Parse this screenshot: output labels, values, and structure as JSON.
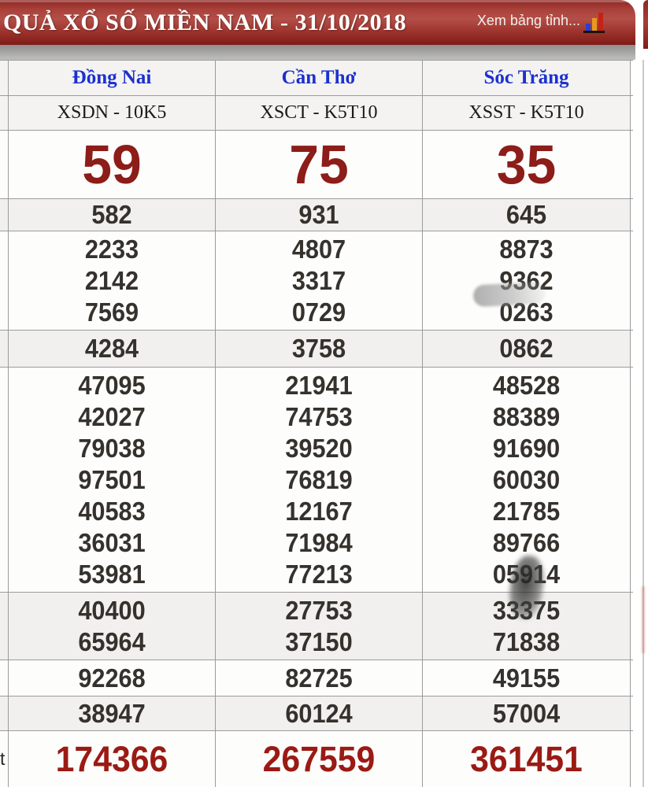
{
  "header": {
    "title": "QUẢ XỔ SỐ MIỀN NAM - 31/10/2018",
    "view_link": "Xem bảng tỉnh...",
    "icon": "bar-chart-icon",
    "bar_colors": {
      "blue": "#2a3fd0",
      "orange": "#e79a1f",
      "red": "#c42314"
    }
  },
  "colors": {
    "header_red": "#a03630",
    "big_number_red": "#8c1d18",
    "special_red": "#9a1b14",
    "province_blue": "#1c30cf",
    "number_dark": "#35322d",
    "row_light": "#f1f0ee",
    "row_white": "#fdfdfc",
    "border_gray": "#9b9b9b"
  },
  "table": {
    "provinces": [
      "Đồng Nai",
      "Cần Thơ",
      "Sóc Trăng"
    ],
    "codes": [
      "XSDN - 10K5",
      "XSCT - K5T10",
      "XSST - K5T10"
    ],
    "big_numbers": [
      "59",
      "75",
      "35"
    ],
    "rows": [
      {
        "shade": "gray",
        "cells": [
          [
            "582"
          ],
          [
            "931"
          ],
          [
            "645"
          ]
        ]
      },
      {
        "shade": "white",
        "cells": [
          [
            "2233",
            "2142",
            "7569"
          ],
          [
            "4807",
            "3317",
            "0729"
          ],
          [
            "8873",
            "9362",
            "0263"
          ]
        ]
      },
      {
        "shade": "gray",
        "cells": [
          [
            "4284"
          ],
          [
            "3758"
          ],
          [
            "0862"
          ]
        ]
      },
      {
        "shade": "white",
        "cells": [
          [
            "47095",
            "42027",
            "79038",
            "97501",
            "40583",
            "36031",
            "53981"
          ],
          [
            "21941",
            "74753",
            "39520",
            "76819",
            "12167",
            "71984",
            "77213"
          ],
          [
            "48528",
            "88389",
            "91690",
            "60030",
            "21785",
            "89766",
            "05914"
          ]
        ]
      },
      {
        "shade": "gray",
        "cells": [
          [
            "40400",
            "65964"
          ],
          [
            "27753",
            "37150"
          ],
          [
            "33375",
            "71838"
          ]
        ]
      },
      {
        "shade": "white",
        "cells": [
          [
            "92268"
          ],
          [
            "82725"
          ],
          [
            "49155"
          ]
        ]
      },
      {
        "shade": "gray",
        "cells": [
          [
            "38947"
          ],
          [
            "60124"
          ],
          [
            "57004"
          ]
        ]
      }
    ],
    "special_numbers": [
      "174366",
      "267559",
      "361451"
    ],
    "left_label_fragment": "t"
  }
}
